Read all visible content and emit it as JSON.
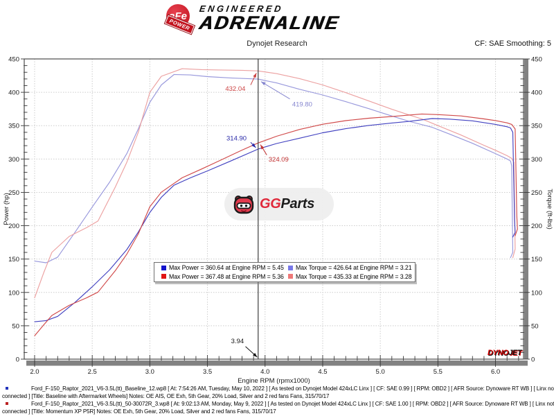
{
  "header": {
    "brand": {
      "afe": "aFe",
      "power": "POWER",
      "engineered": "ENGINEERED",
      "adrenaline": "ADRENALINE"
    },
    "title": "Dynojet Research",
    "smoothing": "CF: SAE Smoothing: 5"
  },
  "watermark": {
    "gg": "GG",
    "parts": "Parts"
  },
  "dynojet_logo": {
    "dyno": "DYNO",
    "jet": "JET"
  },
  "chart_data": {
    "type": "line",
    "title": "Dynojet Research",
    "xlabel": "Engine RPM (rpmx1000)",
    "ylabel_left": "Power (hp)",
    "ylabel_right": "Torque (ft-lbs)",
    "xlim": [
      1.91,
      6.243
    ],
    "ylim": [
      0,
      450
    ],
    "xticks_major": [
      2.0,
      2.5,
      3.0,
      3.5,
      4.0,
      4.5,
      5.0,
      5.5,
      6.0
    ],
    "xtick_minor_step": 0.1,
    "xtick_minor_range": [
      2.0,
      6.2
    ],
    "ytick_major_step": 50,
    "ytick_minor_step": 10,
    "grid": true,
    "cursor_rpm": 3.94,
    "cursor_readout": {
      "power_blue": 314.9,
      "power_red": 324.09,
      "torque_blue": 419.8,
      "torque_red": 432.04
    },
    "series": [
      {
        "name": "baseline-torque",
        "unit": "ft-lbs",
        "axis": "right",
        "color": "#9898dc",
        "points": [
          [
            2.0,
            147
          ],
          [
            2.1,
            144.5
          ],
          [
            2.2,
            153
          ],
          [
            2.35,
            190
          ],
          [
            2.5,
            228
          ],
          [
            2.65,
            265
          ],
          [
            2.8,
            308
          ],
          [
            2.9,
            345
          ],
          [
            3.0,
            385
          ],
          [
            3.1,
            411
          ],
          [
            3.21,
            426.64
          ],
          [
            3.35,
            426
          ],
          [
            3.5,
            423.5
          ],
          [
            3.7,
            421.5
          ],
          [
            3.94,
            419.8
          ],
          [
            4.1,
            414
          ],
          [
            4.3,
            404.5
          ],
          [
            4.5,
            396
          ],
          [
            4.7,
            386
          ],
          [
            4.9,
            375.5
          ],
          [
            5.1,
            364.5
          ],
          [
            5.25,
            356.5
          ],
          [
            5.45,
            347.5
          ],
          [
            5.6,
            337.5
          ],
          [
            5.8,
            323.5
          ],
          [
            6.0,
            308
          ],
          [
            6.1,
            300
          ],
          [
            6.13,
            297
          ],
          [
            6.14,
            290
          ],
          [
            6.15,
            160
          ],
          [
            6.13,
            152
          ]
        ]
      },
      {
        "name": "intake-torque",
        "unit": "ft-lbs",
        "axis": "right",
        "color": "#eca0a0",
        "points": [
          [
            2.0,
            92
          ],
          [
            2.08,
            130
          ],
          [
            2.15,
            160
          ],
          [
            2.3,
            184
          ],
          [
            2.45,
            197
          ],
          [
            2.55,
            207
          ],
          [
            2.7,
            258
          ],
          [
            2.8,
            295
          ],
          [
            2.9,
            340
          ],
          [
            3.0,
            400
          ],
          [
            3.1,
            424
          ],
          [
            3.28,
            435.33
          ],
          [
            3.45,
            434
          ],
          [
            3.6,
            433.5
          ],
          [
            3.8,
            433
          ],
          [
            3.94,
            432.04
          ],
          [
            4.1,
            428
          ],
          [
            4.3,
            420.5
          ],
          [
            4.5,
            411
          ],
          [
            4.7,
            399.5
          ],
          [
            4.9,
            387
          ],
          [
            5.1,
            374.5
          ],
          [
            5.25,
            366
          ],
          [
            5.36,
            360.1
          ],
          [
            5.5,
            350
          ],
          [
            5.7,
            336
          ],
          [
            5.9,
            320.5
          ],
          [
            6.0,
            313
          ],
          [
            6.1,
            305
          ],
          [
            6.14,
            301
          ],
          [
            6.16,
            295
          ],
          [
            6.17,
            165
          ],
          [
            6.15,
            152
          ]
        ]
      },
      {
        "name": "baseline-power",
        "unit": "hp",
        "axis": "left",
        "color": "#4040c0",
        "points": [
          [
            2.0,
            56.0
          ],
          [
            2.1,
            57.8
          ],
          [
            2.2,
            64.1
          ],
          [
            2.35,
            85.0
          ],
          [
            2.5,
            108.5
          ],
          [
            2.65,
            133.7
          ],
          [
            2.8,
            164.2
          ],
          [
            2.9,
            190.5
          ],
          [
            3.0,
            219.9
          ],
          [
            3.1,
            242.6
          ],
          [
            3.21,
            260.7
          ],
          [
            3.35,
            271.7
          ],
          [
            3.5,
            282.2
          ],
          [
            3.7,
            296.9
          ],
          [
            3.94,
            314.9
          ],
          [
            4.1,
            323.2
          ],
          [
            4.3,
            331.2
          ],
          [
            4.5,
            339.3
          ],
          [
            4.7,
            345.4
          ],
          [
            4.9,
            350.3
          ],
          [
            5.1,
            354.0
          ],
          [
            5.25,
            356.4
          ],
          [
            5.45,
            360.64
          ],
          [
            5.6,
            359.8
          ],
          [
            5.8,
            357.2
          ],
          [
            6.0,
            351.9
          ],
          [
            6.1,
            348.4
          ],
          [
            6.13,
            346.6
          ],
          [
            6.15,
            340
          ],
          [
            6.165,
            210
          ],
          [
            6.17,
            190
          ],
          [
            6.15,
            183
          ]
        ]
      },
      {
        "name": "intake-power",
        "unit": "hp",
        "axis": "left",
        "color": "#d04848",
        "points": [
          [
            2.0,
            35.0
          ],
          [
            2.08,
            51.5
          ],
          [
            2.15,
            65.5
          ],
          [
            2.3,
            80.6
          ],
          [
            2.45,
            91.9
          ],
          [
            2.55,
            100.5
          ],
          [
            2.7,
            132.6
          ],
          [
            2.8,
            157.3
          ],
          [
            2.9,
            187.7
          ],
          [
            3.0,
            228.5
          ],
          [
            3.1,
            250.3
          ],
          [
            3.28,
            271.9
          ],
          [
            3.45,
            285.1
          ],
          [
            3.6,
            297.1
          ],
          [
            3.8,
            313.3
          ],
          [
            3.94,
            324.09
          ],
          [
            4.1,
            334.1
          ],
          [
            4.3,
            344.3
          ],
          [
            4.5,
            352.1
          ],
          [
            4.7,
            357.5
          ],
          [
            4.9,
            361.1
          ],
          [
            5.1,
            363.6
          ],
          [
            5.25,
            365.9
          ],
          [
            5.36,
            367.48
          ],
          [
            5.5,
            366.5
          ],
          [
            5.7,
            364.6
          ],
          [
            5.9,
            360.1
          ],
          [
            6.0,
            357.6
          ],
          [
            6.1,
            354.2
          ],
          [
            6.14,
            351.9
          ],
          [
            6.17,
            345
          ],
          [
            6.185,
            215
          ],
          [
            6.19,
            195
          ],
          [
            6.17,
            185
          ]
        ]
      }
    ],
    "legend": [
      {
        "color": "#1414cc",
        "label": "Max Power = 360.64 at Engine RPM = 5.45"
      },
      {
        "color": "#e01414",
        "label": "Max Power = 367.48 at Engine RPM = 5.36"
      },
      {
        "color": "#7878e8",
        "label": "Max Torque = 426.64 at Engine RPM = 3.21"
      },
      {
        "color": "#ee7878",
        "label": "Max Torque = 435.33 at Engine RPM = 3.28"
      }
    ],
    "annotations": [
      {
        "text": "432.04",
        "color": "#cc4444",
        "tx": 3.655,
        "ty": 402,
        "ax": 3.875,
        "ay": 411,
        "tipx": 3.925,
        "tipy": 429
      },
      {
        "text": "419.80",
        "color": "#8585cf",
        "tx": 4.235,
        "ty": 379,
        "ax": 4.215,
        "ay": 390,
        "tipx": 3.965,
        "tipy": 416
      },
      {
        "text": "314.90",
        "color": "#2a2aa8",
        "tx": 3.665,
        "ty": 328,
        "ax": 3.875,
        "ay": 325,
        "tipx": 3.92,
        "tipy": 317
      },
      {
        "text": "324.09",
        "color": "#c23333",
        "tx": 4.03,
        "ty": 296,
        "ax": 4.015,
        "ay": 306,
        "tipx": 3.96,
        "tipy": 321.5
      },
      {
        "text": "3.94",
        "color": "#111111",
        "tx": 3.705,
        "ty": 24,
        "ax": 3.83,
        "ay": 19,
        "tipx": 3.932,
        "tipy": 3
      }
    ]
  },
  "footer": {
    "runs": [
      {
        "bullet_color": "#2233bb",
        "line1": "Ford_F-150_Raptor_2021_V6-3.5L(tt)_Baseline_12.wp8 [ At: 7:54:26 AM, Tuesday, May 10, 2022 ] [ As tested on Dynojet Model 424xLC Linx ] [ CF: SAE 0.99 ] [ RPM: OBD2 ] [ AFR Source: Dynoware RT WB ] [ Linx not",
        "line2": "connected ] [Title: Baseline with Aftermarket Wheels]  Notes: OE AIS, OE Exh, 5th Gear, 20% Load, Silver and 2 red fans Fans, 315/70/17"
      },
      {
        "bullet_color": "#bb2222",
        "line1": "Ford_F-150_Raptor_2021_V6-3.5L(tt)_50-30072R_3.wp8 [ At: 9:02:13 AM, Monday, May 9, 2022 ] [ As tested on Dynojet Model 424xLC Linx ] [ CF: SAE 1.00 ] [ RPM: OBD2 ] [ AFR Source: Dynoware RT WB ] [ Linx not",
        "line2": "connected ] [Title: Momentum XP P5R]  Notes: OE Exh, 5th Gear, 20% Load, Silver and 2 red fans Fans, 315/70/17"
      }
    ]
  }
}
